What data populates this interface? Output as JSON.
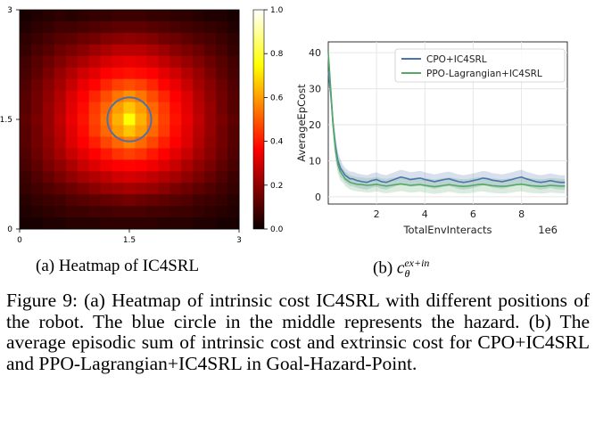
{
  "chart_data": [
    {
      "type": "heatmap",
      "colormap": "hot",
      "grid_size": 19,
      "xticks": [
        "0",
        "1.5",
        "3"
      ],
      "yticks": [
        "0",
        "1.5",
        "3"
      ],
      "colorbar_ticks": [
        "0.0",
        "0.2",
        "0.4",
        "0.6",
        "0.8",
        "1.0"
      ],
      "hazard_circle": {
        "x": 1.5,
        "y": 1.5,
        "radius": 0.3,
        "color": "#4f6fa8"
      },
      "peak": {
        "x": 1.5,
        "y": 1.5,
        "value": 0.75
      },
      "values": [
        [
          0.02,
          0.03,
          0.04,
          0.05,
          0.04,
          0.05,
          0.06,
          0.06,
          0.07,
          0.07,
          0.07,
          0.06,
          0.06,
          0.05,
          0.05,
          0.04,
          0.03,
          0.03,
          0.02
        ],
        [
          0.03,
          0.05,
          0.06,
          0.08,
          0.08,
          0.09,
          0.1,
          0.11,
          0.12,
          0.12,
          0.12,
          0.11,
          0.1,
          0.09,
          0.08,
          0.07,
          0.06,
          0.05,
          0.03
        ],
        [
          0.05,
          0.07,
          0.09,
          0.11,
          0.12,
          0.14,
          0.15,
          0.17,
          0.18,
          0.19,
          0.18,
          0.17,
          0.15,
          0.14,
          0.12,
          0.1,
          0.09,
          0.07,
          0.05
        ],
        [
          0.06,
          0.09,
          0.11,
          0.14,
          0.16,
          0.18,
          0.21,
          0.23,
          0.25,
          0.25,
          0.25,
          0.23,
          0.21,
          0.18,
          0.16,
          0.14,
          0.11,
          0.09,
          0.06
        ],
        [
          0.08,
          0.11,
          0.14,
          0.17,
          0.2,
          0.23,
          0.26,
          0.29,
          0.31,
          0.32,
          0.31,
          0.29,
          0.26,
          0.23,
          0.2,
          0.17,
          0.14,
          0.11,
          0.08
        ],
        [
          0.09,
          0.12,
          0.16,
          0.2,
          0.24,
          0.28,
          0.31,
          0.35,
          0.38,
          0.39,
          0.38,
          0.35,
          0.31,
          0.28,
          0.24,
          0.2,
          0.16,
          0.12,
          0.09
        ],
        [
          0.1,
          0.14,
          0.18,
          0.22,
          0.27,
          0.32,
          0.37,
          0.42,
          0.46,
          0.48,
          0.46,
          0.42,
          0.37,
          0.32,
          0.27,
          0.22,
          0.18,
          0.14,
          0.1
        ],
        [
          0.11,
          0.15,
          0.19,
          0.24,
          0.3,
          0.36,
          0.42,
          0.48,
          0.54,
          0.58,
          0.54,
          0.48,
          0.42,
          0.36,
          0.3,
          0.24,
          0.19,
          0.15,
          0.11
        ],
        [
          0.11,
          0.15,
          0.2,
          0.25,
          0.31,
          0.38,
          0.45,
          0.52,
          0.6,
          0.66,
          0.6,
          0.52,
          0.45,
          0.38,
          0.31,
          0.25,
          0.2,
          0.15,
          0.11
        ],
        [
          0.12,
          0.16,
          0.2,
          0.26,
          0.32,
          0.39,
          0.46,
          0.54,
          0.63,
          0.75,
          0.63,
          0.54,
          0.46,
          0.39,
          0.32,
          0.26,
          0.2,
          0.16,
          0.12
        ],
        [
          0.11,
          0.15,
          0.2,
          0.25,
          0.31,
          0.38,
          0.45,
          0.52,
          0.6,
          0.66,
          0.6,
          0.52,
          0.45,
          0.38,
          0.31,
          0.25,
          0.2,
          0.15,
          0.11
        ],
        [
          0.11,
          0.15,
          0.19,
          0.24,
          0.3,
          0.35,
          0.41,
          0.47,
          0.52,
          0.56,
          0.52,
          0.47,
          0.41,
          0.35,
          0.3,
          0.24,
          0.19,
          0.15,
          0.11
        ],
        [
          0.1,
          0.14,
          0.18,
          0.22,
          0.27,
          0.31,
          0.36,
          0.4,
          0.44,
          0.46,
          0.44,
          0.4,
          0.36,
          0.31,
          0.27,
          0.22,
          0.18,
          0.14,
          0.1
        ],
        [
          0.09,
          0.12,
          0.16,
          0.19,
          0.23,
          0.27,
          0.3,
          0.33,
          0.36,
          0.37,
          0.36,
          0.33,
          0.3,
          0.27,
          0.23,
          0.19,
          0.16,
          0.12,
          0.09
        ],
        [
          0.07,
          0.1,
          0.13,
          0.16,
          0.19,
          0.22,
          0.24,
          0.26,
          0.28,
          0.29,
          0.28,
          0.26,
          0.24,
          0.22,
          0.19,
          0.16,
          0.13,
          0.1,
          0.07
        ],
        [
          0.06,
          0.08,
          0.1,
          0.12,
          0.14,
          0.16,
          0.18,
          0.2,
          0.21,
          0.22,
          0.21,
          0.2,
          0.18,
          0.16,
          0.14,
          0.12,
          0.1,
          0.08,
          0.06
        ],
        [
          0.04,
          0.06,
          0.07,
          0.08,
          0.1,
          0.11,
          0.12,
          0.13,
          0.14,
          0.15,
          0.14,
          0.13,
          0.12,
          0.11,
          0.1,
          0.08,
          0.07,
          0.06,
          0.04
        ],
        [
          0.03,
          0.04,
          0.05,
          0.06,
          0.07,
          0.07,
          0.08,
          0.08,
          0.09,
          0.09,
          0.09,
          0.08,
          0.08,
          0.07,
          0.07,
          0.06,
          0.05,
          0.04,
          0.03
        ],
        [
          0.02,
          0.02,
          0.03,
          0.03,
          0.04,
          0.04,
          0.04,
          0.05,
          0.05,
          0.05,
          0.05,
          0.05,
          0.04,
          0.04,
          0.04,
          0.03,
          0.03,
          0.02,
          0.02
        ]
      ]
    },
    {
      "type": "line",
      "xlabel": "TotalEnvInteracts",
      "ylabel": "AverageEpCost",
      "x_scale_label": "1e6",
      "xlim": [
        0.0,
        9.9
      ],
      "ylim": [
        -2,
        43
      ],
      "xticks": [
        2,
        4,
        6,
        8
      ],
      "xtick_labels": [
        "2",
        "4",
        "6",
        "8"
      ],
      "yticks": [
        0,
        10,
        20,
        30,
        40
      ],
      "ytick_labels": [
        "0",
        "10",
        "20",
        "30",
        "40"
      ],
      "grid": true,
      "legend_position": "top-right",
      "x": [
        0.0,
        0.1,
        0.2,
        0.3,
        0.4,
        0.5,
        0.6,
        0.7,
        0.8,
        0.9,
        1.0,
        1.2,
        1.4,
        1.6,
        1.8,
        2.0,
        2.2,
        2.4,
        2.6,
        2.8,
        3.0,
        3.2,
        3.4,
        3.6,
        3.8,
        4.0,
        4.2,
        4.4,
        4.6,
        4.8,
        5.0,
        5.2,
        5.4,
        5.6,
        5.8,
        6.0,
        6.2,
        6.4,
        6.6,
        6.8,
        7.0,
        7.2,
        7.4,
        7.6,
        7.8,
        8.0,
        8.2,
        8.4,
        8.6,
        8.8,
        9.0,
        9.2,
        9.4,
        9.6,
        9.8
      ],
      "series": [
        {
          "name": "CPO+IC4SRL",
          "color": "#4c72b0",
          "values": [
            35,
            29,
            20,
            14,
            10,
            8,
            7,
            6,
            5.5,
            5,
            5,
            4.5,
            4.2,
            4,
            4.5,
            4.8,
            4.2,
            4,
            4.5,
            5,
            5.5,
            5.2,
            4.8,
            5,
            5.2,
            4.8,
            4.5,
            4.2,
            4.5,
            4.8,
            5,
            4.6,
            4.2,
            4,
            4.2,
            4.5,
            4.8,
            5.2,
            5,
            4.6,
            4.4,
            4.2,
            4.5,
            4.8,
            5.2,
            5.5,
            5,
            4.6,
            4.2,
            4,
            4.2,
            4.5,
            4.2,
            4,
            4
          ],
          "band": [
            3,
            3,
            3,
            3,
            2.5,
            2.5,
            2,
            2,
            2,
            2,
            2,
            2,
            2,
            2,
            2,
            2,
            2,
            2,
            2,
            2,
            2,
            2,
            2,
            2,
            2,
            2,
            2,
            2,
            2,
            2,
            2,
            2,
            2,
            2,
            2,
            2,
            2,
            2,
            2,
            2,
            2,
            2,
            2,
            2,
            2,
            2,
            2,
            2,
            2,
            2,
            2,
            2,
            2,
            2,
            2
          ]
        },
        {
          "name": "PPO-Lagrangian+IC4SRL",
          "color": "#55a868",
          "values": [
            40,
            30,
            20,
            13,
            9,
            7,
            6,
            5,
            4.5,
            4,
            3.8,
            3.5,
            3.4,
            3.2,
            3.3,
            3.5,
            3.2,
            3,
            3.2,
            3.4,
            3.6,
            3.4,
            3.2,
            3.3,
            3.4,
            3.2,
            3,
            2.8,
            3,
            3.2,
            3.4,
            3.2,
            3,
            2.9,
            3,
            3.2,
            3.4,
            3.5,
            3.3,
            3.1,
            3,
            2.9,
            3,
            3.2,
            3.4,
            3.5,
            3.3,
            3.1,
            3,
            2.9,
            3,
            3.2,
            3.1,
            3,
            3
          ],
          "band": [
            3,
            3,
            3,
            3,
            2.5,
            2.5,
            2,
            2,
            2,
            2,
            2,
            2,
            2,
            2,
            2,
            2,
            2,
            2,
            2,
            2,
            2,
            2,
            2,
            2,
            2,
            2,
            2,
            2,
            2,
            2,
            2,
            2,
            2,
            2,
            2,
            2,
            2,
            2,
            2,
            2,
            2,
            2,
            2,
            2,
            2,
            2,
            2,
            2,
            2,
            2,
            2,
            2,
            2,
            2,
            2
          ]
        }
      ]
    }
  ],
  "captions": {
    "sub_a": "(a) Heatmap of IC4SRL",
    "sub_b_prefix": "(b)",
    "sub_b_symbol": "c",
    "sub_b_superscript": "ex+in",
    "sub_b_subscript": "θ",
    "figure": "Figure 9: (a) Heatmap of intrinsic cost IC4SRL with different positions of the robot. The blue circle in the middle represents the hazard. (b) The average episodic sum of intrinsic cost and extrinsic cost for CPO+IC4SRL and PPO-Lagrangian+IC4SRL in Goal-Hazard-Point."
  }
}
